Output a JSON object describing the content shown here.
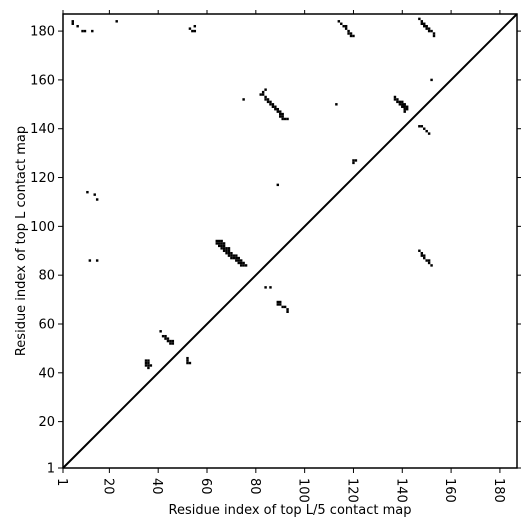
{
  "chart_data": {
    "type": "heatmap",
    "title": "",
    "xlabel": "Residue index of top L/5 contact map",
    "ylabel": "Residue index of top L contact map",
    "xlim": [
      1,
      187
    ],
    "ylim": [
      1,
      187
    ],
    "x_ticks": [
      1,
      20,
      40,
      60,
      80,
      100,
      120,
      140,
      160,
      180
    ],
    "y_ticks": [
      1,
      20,
      40,
      60,
      80,
      100,
      120,
      140,
      160,
      180
    ],
    "diagonal": true,
    "grid": false,
    "cells": [
      [
        5,
        184
      ],
      [
        5,
        183
      ],
      [
        7,
        182
      ],
      [
        9,
        180
      ],
      [
        10,
        180
      ],
      [
        13,
        180
      ],
      [
        23,
        184
      ],
      [
        53,
        181
      ],
      [
        54,
        180
      ],
      [
        55,
        180
      ],
      [
        55,
        182
      ],
      [
        114,
        184
      ],
      [
        115,
        183
      ],
      [
        116,
        182
      ],
      [
        117,
        182
      ],
      [
        117,
        181
      ],
      [
        118,
        180
      ],
      [
        118,
        179
      ],
      [
        119,
        179
      ],
      [
        119,
        178
      ],
      [
        120,
        178
      ],
      [
        147,
        185
      ],
      [
        148,
        184
      ],
      [
        148,
        183
      ],
      [
        149,
        183
      ],
      [
        149,
        182
      ],
      [
        150,
        182
      ],
      [
        150,
        181
      ],
      [
        151,
        181
      ],
      [
        151,
        180
      ],
      [
        152,
        180
      ],
      [
        153,
        179
      ],
      [
        153,
        178
      ],
      [
        152,
        160
      ],
      [
        83,
        155
      ],
      [
        82,
        154
      ],
      [
        83,
        154
      ],
      [
        84,
        153
      ],
      [
        84,
        152
      ],
      [
        85,
        152
      ],
      [
        85,
        151
      ],
      [
        86,
        151
      ],
      [
        86,
        150
      ],
      [
        87,
        150
      ],
      [
        87,
        149
      ],
      [
        88,
        149
      ],
      [
        88,
        148
      ],
      [
        89,
        148
      ],
      [
        89,
        147
      ],
      [
        90,
        147
      ],
      [
        90,
        146
      ],
      [
        91,
        146
      ],
      [
        90,
        145
      ],
      [
        91,
        145
      ],
      [
        91,
        144
      ],
      [
        92,
        144
      ],
      [
        93,
        144
      ],
      [
        84,
        156
      ],
      [
        75,
        152
      ],
      [
        113,
        150
      ],
      [
        137,
        153
      ],
      [
        137,
        152
      ],
      [
        138,
        152
      ],
      [
        138,
        151
      ],
      [
        139,
        151
      ],
      [
        140,
        151
      ],
      [
        139,
        150
      ],
      [
        140,
        150
      ],
      [
        141,
        150
      ],
      [
        140,
        149
      ],
      [
        141,
        149
      ],
      [
        142,
        149
      ],
      [
        141,
        148
      ],
      [
        142,
        148
      ],
      [
        141,
        147
      ],
      [
        147,
        141
      ],
      [
        148,
        141
      ],
      [
        149,
        140
      ],
      [
        150,
        139
      ],
      [
        151,
        138
      ],
      [
        120,
        127
      ],
      [
        120,
        126
      ],
      [
        121,
        127
      ],
      [
        89,
        117
      ],
      [
        11,
        114
      ],
      [
        14,
        113
      ],
      [
        15,
        111
      ],
      [
        64,
        94
      ],
      [
        65,
        94
      ],
      [
        66,
        94
      ],
      [
        64,
        93
      ],
      [
        65,
        93
      ],
      [
        66,
        93
      ],
      [
        67,
        93
      ],
      [
        65,
        92
      ],
      [
        66,
        92
      ],
      [
        67,
        92
      ],
      [
        66,
        91
      ],
      [
        67,
        91
      ],
      [
        68,
        91
      ],
      [
        69,
        91
      ],
      [
        67,
        90
      ],
      [
        68,
        90
      ],
      [
        69,
        90
      ],
      [
        68,
        89
      ],
      [
        69,
        89
      ],
      [
        70,
        89
      ],
      [
        69,
        88
      ],
      [
        70,
        88
      ],
      [
        71,
        88
      ],
      [
        72,
        88
      ],
      [
        70,
        87
      ],
      [
        71,
        87
      ],
      [
        72,
        87
      ],
      [
        73,
        87
      ],
      [
        72,
        86
      ],
      [
        73,
        86
      ],
      [
        74,
        86
      ],
      [
        73,
        85
      ],
      [
        74,
        85
      ],
      [
        75,
        85
      ],
      [
        74,
        84
      ],
      [
        75,
        84
      ],
      [
        76,
        84
      ],
      [
        12,
        86
      ],
      [
        15,
        86
      ],
      [
        147,
        90
      ],
      [
        148,
        89
      ],
      [
        148,
        88
      ],
      [
        149,
        88
      ],
      [
        149,
        87
      ],
      [
        150,
        86
      ],
      [
        151,
        86
      ],
      [
        151,
        85
      ],
      [
        152,
        84
      ],
      [
        84,
        75
      ],
      [
        86,
        75
      ],
      [
        89,
        69
      ],
      [
        90,
        69
      ],
      [
        89,
        68
      ],
      [
        90,
        68
      ],
      [
        91,
        67
      ],
      [
        92,
        67
      ],
      [
        93,
        66
      ],
      [
        93,
        65
      ],
      [
        41,
        57
      ],
      [
        42,
        55
      ],
      [
        43,
        55
      ],
      [
        43,
        54
      ],
      [
        44,
        54
      ],
      [
        44,
        53
      ],
      [
        45,
        53
      ],
      [
        45,
        52
      ],
      [
        46,
        52
      ],
      [
        46,
        53
      ],
      [
        35,
        45
      ],
      [
        36,
        45
      ],
      [
        35,
        44
      ],
      [
        36,
        44
      ],
      [
        35,
        43
      ],
      [
        36,
        43
      ],
      [
        37,
        43
      ],
      [
        36,
        42
      ],
      [
        52,
        46
      ],
      [
        52,
        45
      ],
      [
        52,
        44
      ],
      [
        53,
        44
      ]
    ]
  }
}
